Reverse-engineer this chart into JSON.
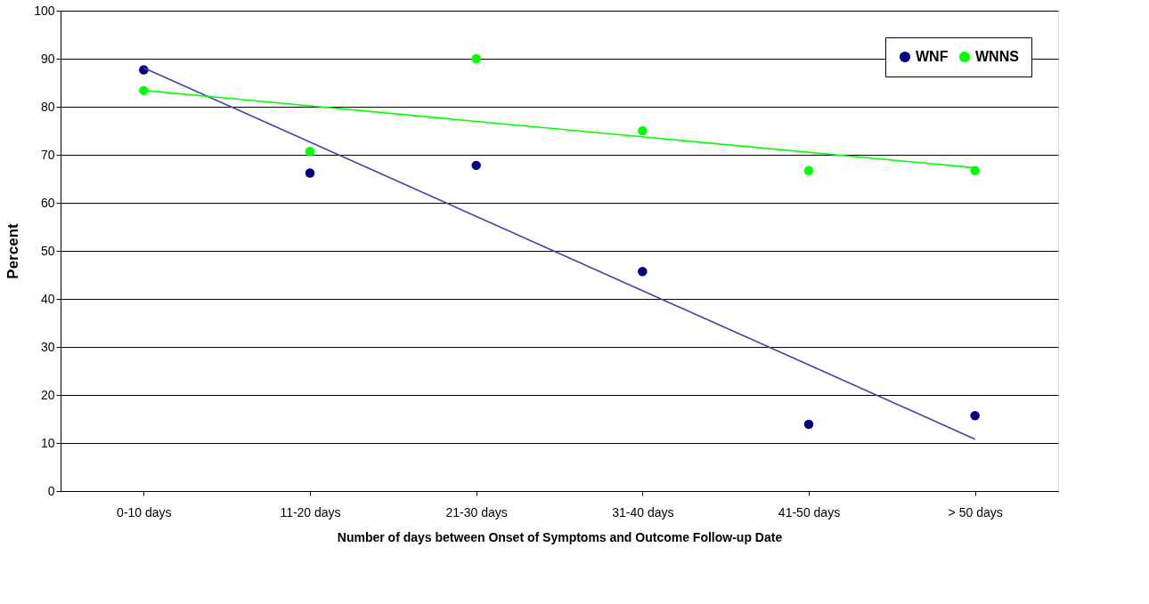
{
  "chart_data": {
    "type": "scatter",
    "xlabel": "Number of days between Onset of Symptoms and Outcome Follow-up Date",
    "ylabel": "Percent",
    "categories": [
      "0-10 days",
      "11-20 days",
      "21-30 days",
      "31-40 days",
      "41-50 days",
      "> 50 days"
    ],
    "series": [
      {
        "name": "WNF",
        "color": "#000080",
        "values": [
          87.7,
          66.2,
          67.8,
          45.7,
          13.9,
          15.7
        ]
      },
      {
        "name": "WNNS",
        "color": "#00ff00",
        "values": [
          83.4,
          70.7,
          90,
          75,
          66.7,
          66.7
        ]
      },
      {
        "type": "line",
        "marker": "none",
        "color": "#4040b0",
        "x": [
          "0-10 days",
          "> 50 days"
        ],
        "values": [
          88.1,
          10.8
        ]
      },
      {
        "type": "line",
        "marker": "none",
        "color": "#00ff00",
        "x": [
          "0-10 days",
          "> 50 days"
        ],
        "values": [
          83.4,
          67.3
        ]
      }
    ],
    "ylim": [
      0,
      100
    ],
    "yticks": [
      0,
      10,
      20,
      30,
      40,
      50,
      60,
      70,
      80,
      90,
      100
    ],
    "grid": "y",
    "legend": "top right",
    "marker": "circle"
  }
}
